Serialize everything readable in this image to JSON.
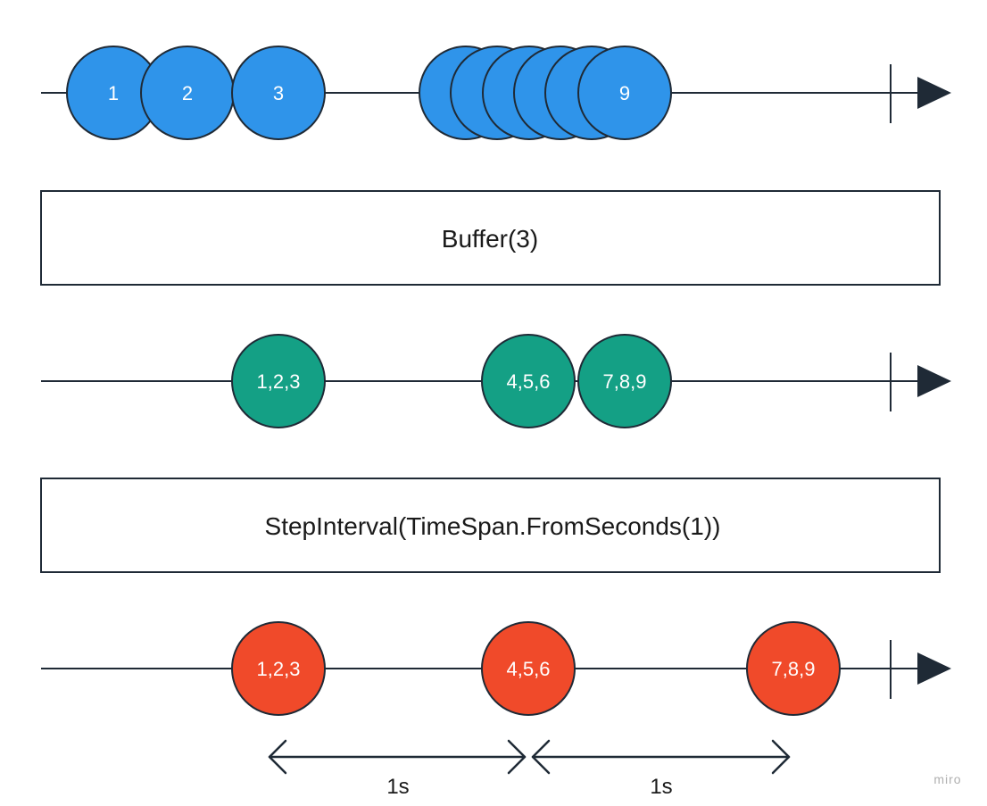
{
  "colors": {
    "source": "#2f94ea",
    "buffered": "#14a085",
    "output": "#f04a2a",
    "stroke": "#1f2a36"
  },
  "source_stream": {
    "marbles": [
      "1",
      "2",
      "3",
      "",
      "",
      "",
      "",
      "",
      "9"
    ]
  },
  "operator_1": {
    "label": "Buffer(3)"
  },
  "buffered_stream": {
    "marbles": [
      "1,2,3",
      "4,5,6",
      "7,8,9"
    ]
  },
  "operator_2": {
    "label": "StepInterval(TimeSpan.FromSeconds(1))"
  },
  "output_stream": {
    "marbles": [
      "1,2,3",
      "4,5,6",
      "7,8,9"
    ]
  },
  "intervals": [
    "1s",
    "1s"
  ],
  "watermark": "miro"
}
